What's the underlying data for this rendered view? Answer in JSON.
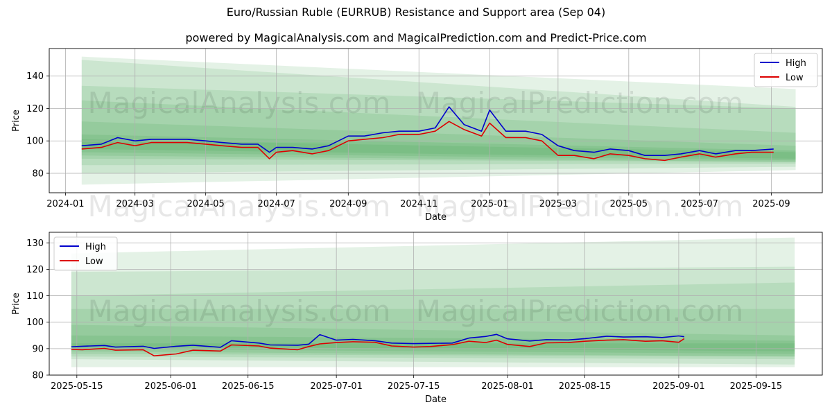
{
  "title": "Euro/Russian Ruble (EURRUB) Resistance and Support area (Sep 04)",
  "subtitle": "powered by MagicalAnalysis.com and MagicalPrediction.com and Predict-Price.com",
  "watermarks": [
    "MagicalAnalysis.com",
    "MagicalPrediction.com"
  ],
  "colors": {
    "high": "#0000cc",
    "low": "#dd0000",
    "band": "#2e9a3a",
    "grid": "#b0b0b0"
  },
  "chart_data": [
    {
      "type": "line",
      "xlabel": "Date",
      "ylabel": "Price",
      "x_ticks": [
        "2024-01",
        "2024-03",
        "2024-05",
        "2024-07",
        "2024-09",
        "2024-11",
        "2025-01",
        "2025-03",
        "2025-05",
        "2025-07",
        "2025-09"
      ],
      "y_ticks": [
        80,
        100,
        120,
        140
      ],
      "ylim": [
        68,
        157
      ],
      "grid": true,
      "legend": "top-right",
      "x": [
        "2024-01-15",
        "2024-02-01",
        "2024-02-15",
        "2024-03-01",
        "2024-03-15",
        "2024-04-01",
        "2024-04-15",
        "2024-05-01",
        "2024-05-15",
        "2024-06-01",
        "2024-06-15",
        "2024-06-25",
        "2024-07-01",
        "2024-07-15",
        "2024-08-01",
        "2024-08-15",
        "2024-09-01",
        "2024-09-15",
        "2024-10-01",
        "2024-10-15",
        "2024-11-01",
        "2024-11-15",
        "2024-11-27",
        "2024-12-10",
        "2024-12-25",
        "2025-01-01",
        "2025-01-15",
        "2025-02-01",
        "2025-02-15",
        "2025-03-01",
        "2025-03-15",
        "2025-04-01",
        "2025-04-15",
        "2025-05-01",
        "2025-05-15",
        "2025-06-01",
        "2025-06-15",
        "2025-07-01",
        "2025-07-15",
        "2025-08-01",
        "2025-08-15",
        "2025-09-03"
      ],
      "series": [
        {
          "name": "High",
          "values": [
            97,
            98,
            102,
            100,
            101,
            101,
            101,
            100,
            99,
            98,
            98,
            93,
            96,
            96,
            95,
            97,
            103,
            103,
            105,
            106,
            106,
            108,
            121,
            110,
            106,
            119,
            106,
            106,
            104,
            97,
            94,
            93,
            95,
            94,
            91,
            91,
            92,
            94,
            92,
            94,
            94,
            95
          ]
        },
        {
          "name": "Low",
          "values": [
            95,
            96,
            99,
            97,
            99,
            99,
            99,
            98,
            97,
            96,
            96,
            89,
            93,
            94,
            92,
            94,
            100,
            101,
            102,
            104,
            104,
            106,
            112,
            107,
            103,
            111,
            102,
            102,
            100,
            91,
            91,
            89,
            92,
            91,
            89,
            88,
            90,
            92,
            90,
            92,
            93,
            93
          ]
        }
      ],
      "bands": [
        {
          "start": [
            73,
            152
          ],
          "end": [
            82,
            132
          ]
        },
        {
          "start": [
            80,
            150
          ],
          "end": [
            84,
            121
          ]
        },
        {
          "start": [
            85,
            134
          ],
          "end": [
            86,
            120
          ]
        },
        {
          "start": [
            89,
            125
          ],
          "end": [
            87,
            105
          ]
        },
        {
          "start": [
            91,
            112
          ],
          "end": [
            87,
            97
          ]
        },
        {
          "start": [
            93,
            104
          ],
          "end": [
            88,
            94
          ]
        },
        {
          "start": [
            95,
            101
          ],
          "end": [
            89,
            93
          ]
        }
      ]
    },
    {
      "type": "line",
      "xlabel": "Date",
      "ylabel": "Price",
      "x_ticks": [
        "2025-05-15",
        "2025-06-01",
        "2025-06-15",
        "2025-07-01",
        "2025-07-15",
        "2025-08-01",
        "2025-08-15",
        "2025-09-01",
        "2025-09-15"
      ],
      "y_ticks": [
        80,
        90,
        100,
        110,
        120,
        130
      ],
      "ylim": [
        80,
        134
      ],
      "grid": true,
      "legend": "top-left",
      "x": [
        "2025-05-14",
        "2025-05-16",
        "2025-05-20",
        "2025-05-22",
        "2025-05-27",
        "2025-05-29",
        "2025-06-02",
        "2025-06-05",
        "2025-06-10",
        "2025-06-12",
        "2025-06-17",
        "2025-06-19",
        "2025-06-24",
        "2025-06-26",
        "2025-06-28",
        "2025-07-01",
        "2025-07-04",
        "2025-07-08",
        "2025-07-11",
        "2025-07-15",
        "2025-07-18",
        "2025-07-22",
        "2025-07-25",
        "2025-07-28",
        "2025-07-30",
        "2025-08-01",
        "2025-08-05",
        "2025-08-08",
        "2025-08-12",
        "2025-08-15",
        "2025-08-19",
        "2025-08-22",
        "2025-08-26",
        "2025-08-29",
        "2025-09-01",
        "2025-09-02"
      ],
      "series": [
        {
          "name": "High",
          "values": [
            90.7,
            90.9,
            91.2,
            90.6,
            90.9,
            90.1,
            90.9,
            91.3,
            90.5,
            93.0,
            92.1,
            91.4,
            91.3,
            91.7,
            95.3,
            93.2,
            93.5,
            93.0,
            92.1,
            91.9,
            92.0,
            92.1,
            94.0,
            94.6,
            95.4,
            93.7,
            92.9,
            93.4,
            93.3,
            93.8,
            94.7,
            94.4,
            94.5,
            94.2,
            94.8,
            94.5
          ]
        },
        {
          "name": "Low",
          "values": [
            89.7,
            89.6,
            90.1,
            89.4,
            89.6,
            87.3,
            88.0,
            89.4,
            89.1,
            91.4,
            91.0,
            90.2,
            89.6,
            90.8,
            91.8,
            92.3,
            92.6,
            92.4,
            91.0,
            90.6,
            90.8,
            91.5,
            92.8,
            92.3,
            93.2,
            91.6,
            90.8,
            92.2,
            92.3,
            92.8,
            93.2,
            93.4,
            92.8,
            93.0,
            92.4,
            93.8
          ]
        }
      ],
      "bands": [
        {
          "start": [
            83,
            126
          ],
          "end": [
            83,
            132
          ]
        },
        {
          "start": [
            86,
            119
          ],
          "end": [
            84,
            121
          ]
        },
        {
          "start": [
            87,
            110
          ],
          "end": [
            86,
            115
          ]
        },
        {
          "start": [
            88,
            105
          ],
          "end": [
            87,
            105
          ]
        },
        {
          "start": [
            89,
            99
          ],
          "end": [
            87,
            95
          ]
        },
        {
          "start": [
            90,
            95
          ],
          "end": [
            88,
            93
          ]
        },
        {
          "start": [
            91,
            92
          ],
          "end": [
            89,
            92
          ]
        }
      ]
    }
  ]
}
